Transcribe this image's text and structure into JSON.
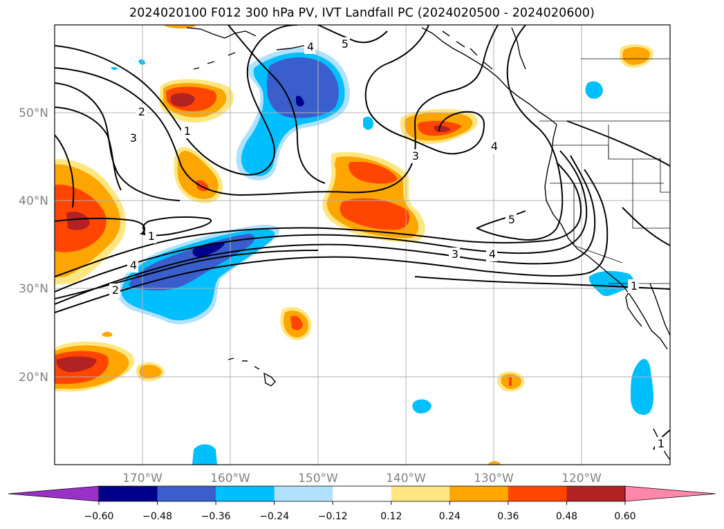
{
  "title": "2024020100 F012 300 hPa PV, IVT Landfall PC (2024020500 - 2024020600)",
  "map": {
    "lat_labels": [
      "50°N",
      "40°N",
      "30°N",
      "20°N"
    ],
    "lon_labels": [
      "170°W",
      "160°W",
      "150°W",
      "140°W",
      "130°W",
      "120°W"
    ],
    "lon_range": [
      180,
      110
    ],
    "lat_range": [
      10,
      60
    ]
  },
  "contour_labels": [
    "2",
    "3",
    "1",
    "4",
    "5",
    "3",
    "4",
    "3",
    "4",
    "5",
    "1",
    "4",
    "2",
    "1",
    "1"
  ],
  "colorbar": {
    "ticks": [
      "−0.60",
      "−0.48",
      "−0.36",
      "−0.24",
      "−0.12",
      "0.12",
      "0.24",
      "0.36",
      "0.48",
      "0.60"
    ],
    "colors": [
      "#9b30c8",
      "#00008b",
      "#3a5fcd",
      "#00bfff",
      "#b0e2ff",
      "#ffffff",
      "#ffe680",
      "#ffa500",
      "#ff4500",
      "#b22222",
      "#ff88aa"
    ]
  }
}
